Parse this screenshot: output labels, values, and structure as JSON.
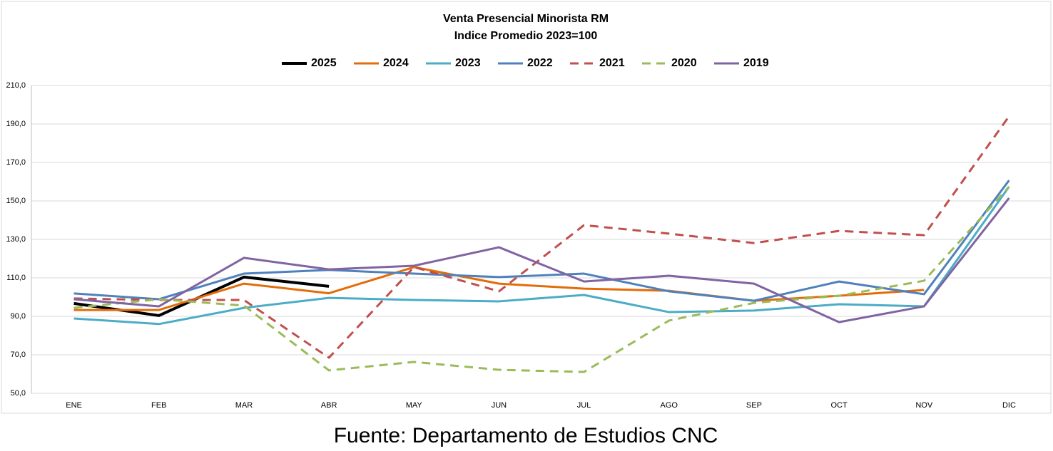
{
  "chart_data": {
    "type": "line",
    "title": "Venta Presencial Minorista RM",
    "subtitle": "Indice Promedio 2023=100",
    "source": "Fuente: Departamento de Estudios CNC",
    "categories": [
      "ENE",
      "FEB",
      "MAR",
      "ABR",
      "MAY",
      "JUN",
      "JUL",
      "AGO",
      "SEP",
      "OCT",
      "NOV",
      "DIC"
    ],
    "series": [
      {
        "name": "2025",
        "color": "#000000",
        "dashed": false,
        "values": [
          96.7,
          90.4,
          110.4,
          105.6,
          null,
          null,
          null,
          null,
          null,
          null,
          null,
          null
        ]
      },
      {
        "name": "2024",
        "color": "#e36c09",
        "dashed": false,
        "values": [
          93.3,
          93.3,
          107,
          102,
          115.6,
          107,
          104.4,
          103.3,
          98.1,
          100.7,
          103.7,
          null
        ]
      },
      {
        "name": "2023",
        "color": "#4bacc6",
        "dashed": false,
        "values": [
          88.9,
          86,
          94.4,
          99.6,
          98.5,
          97.8,
          101.1,
          92.2,
          93,
          96.3,
          95.2,
          157.4
        ]
      },
      {
        "name": "2022",
        "color": "#4f81bd",
        "dashed": false,
        "values": [
          101.9,
          98.9,
          112.2,
          114.1,
          112.2,
          110.4,
          112.2,
          103,
          98.1,
          108.1,
          101.5,
          160.7
        ]
      },
      {
        "name": "2021",
        "color": "#c0504d",
        "dashed": true,
        "values": [
          99.3,
          98.5,
          98.5,
          68.5,
          115.6,
          103,
          137.4,
          133,
          128.1,
          134.4,
          132.2,
          194
        ]
      },
      {
        "name": "2020",
        "color": "#9bbb59",
        "dashed": true,
        "values": [
          94.4,
          98.9,
          95.6,
          61.9,
          66.3,
          62.2,
          61.1,
          87.8,
          97,
          100.7,
          108.5,
          157.4
        ]
      },
      {
        "name": "2019",
        "color": "#8064a2",
        "dashed": false,
        "values": [
          98.9,
          95.2,
          120.4,
          114.4,
          116.3,
          125.9,
          108.1,
          111.1,
          107,
          87,
          95.2,
          151.5
        ]
      }
    ],
    "ylim": [
      50,
      210
    ],
    "yticks": [
      {
        "value": 50,
        "label": "50,0"
      },
      {
        "value": 70,
        "label": "70,0"
      },
      {
        "value": 90,
        "label": "90,0"
      },
      {
        "value": 110,
        "label": "110,0"
      },
      {
        "value": 130,
        "label": "130,0"
      },
      {
        "value": 150,
        "label": "150,0"
      },
      {
        "value": 170,
        "label": "170,0"
      },
      {
        "value": 190,
        "label": "190,0"
      },
      {
        "value": 210,
        "label": "210,0"
      }
    ],
    "grid": true,
    "legend": "top"
  }
}
